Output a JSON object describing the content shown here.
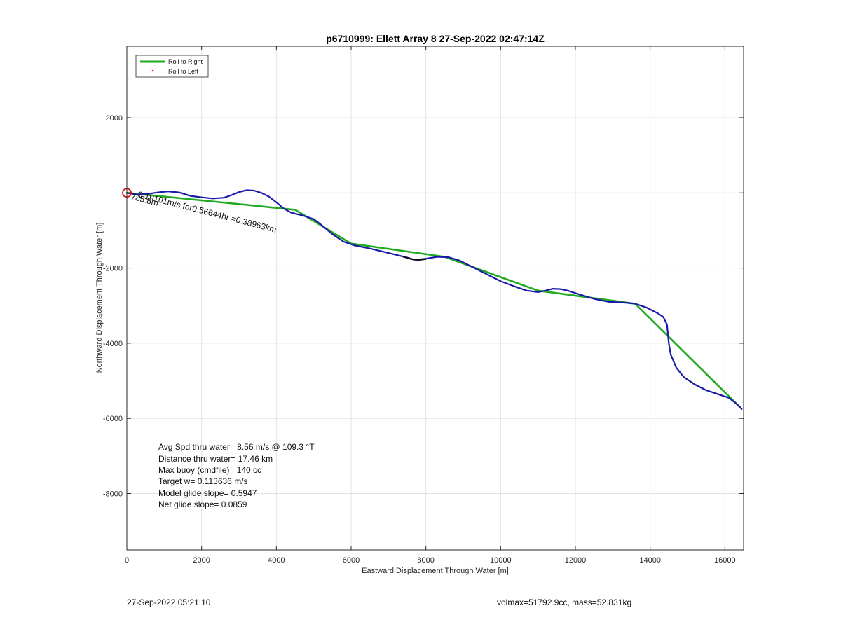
{
  "chart_data": {
    "type": "line",
    "title": "p6710999: Ellett Array 8 27-Sep-2022 02:47:14Z",
    "xlabel": "Eastward Displacement Through Water [m]",
    "ylabel": "Northward Displacement Through Water [m]",
    "xlim": [
      0,
      16500
    ],
    "ylim": [
      -9500,
      3900
    ],
    "xticks": [
      0,
      2000,
      4000,
      6000,
      8000,
      10000,
      12000,
      14000,
      16000
    ],
    "yticks": [
      -8000,
      -6000,
      -4000,
      -2000,
      2000
    ],
    "xtick_labels": [
      "0",
      "2000",
      "4000",
      "6000",
      "8000",
      "10000",
      "12000",
      "14000",
      "16000"
    ],
    "ytick_labels": [
      "-8000",
      "-6000",
      "-4000",
      "-2000",
      "2000"
    ],
    "grid": true,
    "legend": {
      "placement": "top-left",
      "entries": [
        "Roll to Right",
        "Roll to Left"
      ]
    },
    "series": [
      {
        "name": "Roll to Right",
        "color": "#1faa1f",
        "x": [
          0,
          4500,
          6000,
          8500,
          11000,
          13600,
          16400
        ],
        "y": [
          0,
          -450,
          -1350,
          -1700,
          -2600,
          -2950,
          -5700
        ]
      },
      {
        "color": "#1a1aaa",
        "x": [
          0,
          300,
          600,
          900,
          1100,
          1400,
          1700,
          2000,
          2300,
          2600,
          2800,
          3000,
          3200,
          3400,
          3600,
          3800,
          4000,
          4200,
          4400,
          4700,
          5000,
          5200,
          5500,
          5800,
          6100,
          6500,
          7000,
          7500,
          7700,
          8000,
          8300,
          8600,
          8900,
          9200,
          9600,
          10000,
          10400,
          10700,
          11000,
          11200,
          11400,
          11600,
          11800,
          12100,
          12500,
          12900,
          13300,
          13600,
          13900,
          14200,
          14350,
          14450,
          14500,
          14550,
          14700,
          14900,
          15200,
          15500,
          15800,
          16100,
          16300,
          16450
        ],
        "y": [
          0,
          -50,
          -20,
          20,
          40,
          10,
          -80,
          -120,
          -150,
          -130,
          -60,
          20,
          70,
          60,
          0,
          -100,
          -250,
          -420,
          -530,
          -600,
          -700,
          -850,
          -1100,
          -1300,
          -1400,
          -1480,
          -1600,
          -1720,
          -1780,
          -1750,
          -1700,
          -1710,
          -1800,
          -1950,
          -2150,
          -2350,
          -2500,
          -2600,
          -2640,
          -2600,
          -2550,
          -2560,
          -2600,
          -2700,
          -2820,
          -2900,
          -2920,
          -2950,
          -3050,
          -3200,
          -3300,
          -3500,
          -4000,
          -4300,
          -4650,
          -4900,
          -5100,
          -5250,
          -5350,
          -5450,
          -5600,
          -5750
        ]
      },
      {
        "color": "#111111",
        "x": [
          7400,
          7600,
          7800,
          8000
        ],
        "y": [
          -1700,
          -1760,
          -1790,
          -1760
        ]
      }
    ],
    "start_marker": {
      "color": "#dd1111",
      "x": 0,
      "y": 0
    },
    "annotations": {
      "segment_label": "0.19101m/s for0.56644hr =0.38963km",
      "overlap_label": "785.8m"
    }
  },
  "stats": {
    "lines": [
      "Avg Spd thru water=  8.56 m/s @ 109.3 °T",
      "Distance thru water= 17.46 km",
      "Max buoy (cmdfile)= 140 cc",
      "Target w= 0.113636 m/s",
      "Model glide slope= 0.5947",
      "Net glide slope= 0.0859"
    ]
  },
  "footer": {
    "timestamp": "27-Sep-2022 05:21:10",
    "volmax": "volmax=51792.9cc, mass=52.831kg"
  }
}
